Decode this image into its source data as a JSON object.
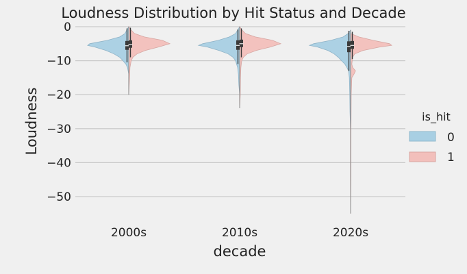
{
  "chart_data": {
    "type": "violin",
    "title": "Loudness Distribution by Hit Status and Decade",
    "xlabel": "decade",
    "ylabel": "Loudness",
    "categories": [
      "2000s",
      "2010s",
      "2020s"
    ],
    "ylim": [
      -55.5,
      0.5
    ],
    "yticks": [
      0,
      -10,
      -20,
      -30,
      -40,
      -50
    ],
    "ytick_labels": [
      "0",
      "−10",
      "−20",
      "−30",
      "−40",
      "−50"
    ],
    "grid": true,
    "split": true,
    "legend": {
      "title": "is_hit",
      "position": "right",
      "entries": [
        {
          "label": "0",
          "color": "#a8cfe3"
        },
        {
          "label": "1",
          "color": "#f2bfbb"
        }
      ]
    },
    "series": [
      {
        "name": "0",
        "color": "#a8cfe3",
        "profiles": [
          {
            "ymin": -14,
            "ymax": 0,
            "width": [
              [
                0,
                0
              ],
              [
                -1,
                0.05
              ],
              [
                -2,
                0.09
              ],
              [
                -3,
                0.22
              ],
              [
                -4,
                0.52
              ],
              [
                -5,
                0.95
              ],
              [
                -5.5,
                1.0
              ],
              [
                -6,
                0.82
              ],
              [
                -7,
                0.55
              ],
              [
                -8,
                0.36
              ],
              [
                -9,
                0.22
              ],
              [
                -10,
                0.14
              ],
              [
                -11,
                0.07
              ],
              [
                -12,
                0.03
              ],
              [
                -14,
                0
              ]
            ]
          },
          {
            "ymin": -20,
            "ymax": 0,
            "width": [
              [
                0,
                0
              ],
              [
                -1,
                0.05
              ],
              [
                -2,
                0.1
              ],
              [
                -3,
                0.25
              ],
              [
                -4,
                0.52
              ],
              [
                -5,
                0.9
              ],
              [
                -5.5,
                1.0
              ],
              [
                -6,
                0.78
              ],
              [
                -7,
                0.5
              ],
              [
                -8,
                0.28
              ],
              [
                -9,
                0.16
              ],
              [
                -10,
                0.1
              ],
              [
                -12,
                0.05
              ],
              [
                -14,
                0.03
              ],
              [
                -17,
                0.02
              ],
              [
                -20,
                0
              ]
            ]
          },
          {
            "ymin": -31,
            "ymax": -1,
            "width": [
              [
                -1,
                0
              ],
              [
                -2,
                0.06
              ],
              [
                -3,
                0.18
              ],
              [
                -4,
                0.48
              ],
              [
                -5,
                0.9
              ],
              [
                -5.5,
                1.0
              ],
              [
                -6,
                0.8
              ],
              [
                -7,
                0.55
              ],
              [
                -8,
                0.4
              ],
              [
                -9,
                0.3
              ],
              [
                -10,
                0.22
              ],
              [
                -11,
                0.14
              ],
              [
                -12,
                0.09
              ],
              [
                -13,
                0.05
              ],
              [
                -15,
                0.03
              ],
              [
                -20,
                0.02
              ],
              [
                -25,
                0.015
              ],
              [
                -31,
                0
              ]
            ]
          }
        ],
        "boxes": [
          {
            "q1": -6.8,
            "median": -5.6,
            "q3": -4.2,
            "whisker_low": -10.5,
            "whisker_high": -0.5
          },
          {
            "q1": -6.8,
            "median": -5.5,
            "q3": -4.0,
            "whisker_low": -11.0,
            "whisker_high": -0.8
          },
          {
            "q1": -7.5,
            "median": -5.8,
            "q3": -4.3,
            "whisker_low": -13.0,
            "whisker_high": -1.2
          }
        ]
      },
      {
        "name": "1",
        "color": "#f2bfbb",
        "profiles": [
          {
            "ymin": -20,
            "ymax": 0,
            "width": [
              [
                0,
                0
              ],
              [
                -1,
                0.06
              ],
              [
                -2,
                0.14
              ],
              [
                -3,
                0.38
              ],
              [
                -4,
                0.82
              ],
              [
                -5,
                1.0
              ],
              [
                -6,
                0.72
              ],
              [
                -7,
                0.4
              ],
              [
                -8,
                0.2
              ],
              [
                -9,
                0.1
              ],
              [
                -10,
                0.06
              ],
              [
                -12,
                0.03
              ],
              [
                -15,
                0.02
              ],
              [
                -20,
                0
              ]
            ]
          },
          {
            "ymin": -24,
            "ymax": 0,
            "width": [
              [
                0,
                0
              ],
              [
                -1,
                0.06
              ],
              [
                -2,
                0.14
              ],
              [
                -3,
                0.38
              ],
              [
                -4,
                0.8
              ],
              [
                -5,
                1.0
              ],
              [
                -6,
                0.74
              ],
              [
                -7,
                0.4
              ],
              [
                -8,
                0.18
              ],
              [
                -9,
                0.09
              ],
              [
                -10,
                0.05
              ],
              [
                -12,
                0.03
              ],
              [
                -15,
                0.02
              ],
              [
                -20,
                0.015
              ],
              [
                -24,
                0
              ]
            ]
          },
          {
            "ymin": -55,
            "ymax": -2,
            "width": [
              [
                -2,
                0
              ],
              [
                -3,
                0.2
              ],
              [
                -4,
                0.55
              ],
              [
                -5,
                0.95
              ],
              [
                -5.5,
                1.0
              ],
              [
                -6,
                0.7
              ],
              [
                -7,
                0.3
              ],
              [
                -8,
                0.1
              ],
              [
                -9,
                0.05
              ],
              [
                -11,
                0.03
              ],
              [
                -12,
                0.05
              ],
              [
                -13,
                0.12
              ],
              [
                -14,
                0.08
              ],
              [
                -15,
                0.03
              ],
              [
                -20,
                0.015
              ],
              [
                -30,
                0.01
              ],
              [
                -45,
                0.008
              ],
              [
                -55,
                0
              ]
            ]
          }
        ],
        "boxes": [
          {
            "q1": -6.2,
            "median": -5.2,
            "q3": -4.0,
            "whisker_low": -9.0,
            "whisker_high": -0.3
          },
          {
            "q1": -6.0,
            "median": -5.0,
            "q3": -3.8,
            "whisker_low": -9.0,
            "whisker_high": -0.5
          },
          {
            "q1": -6.5,
            "median": -5.5,
            "q3": -4.2,
            "whisker_low": -9.5,
            "whisker_high": -1.5
          }
        ]
      }
    ]
  }
}
